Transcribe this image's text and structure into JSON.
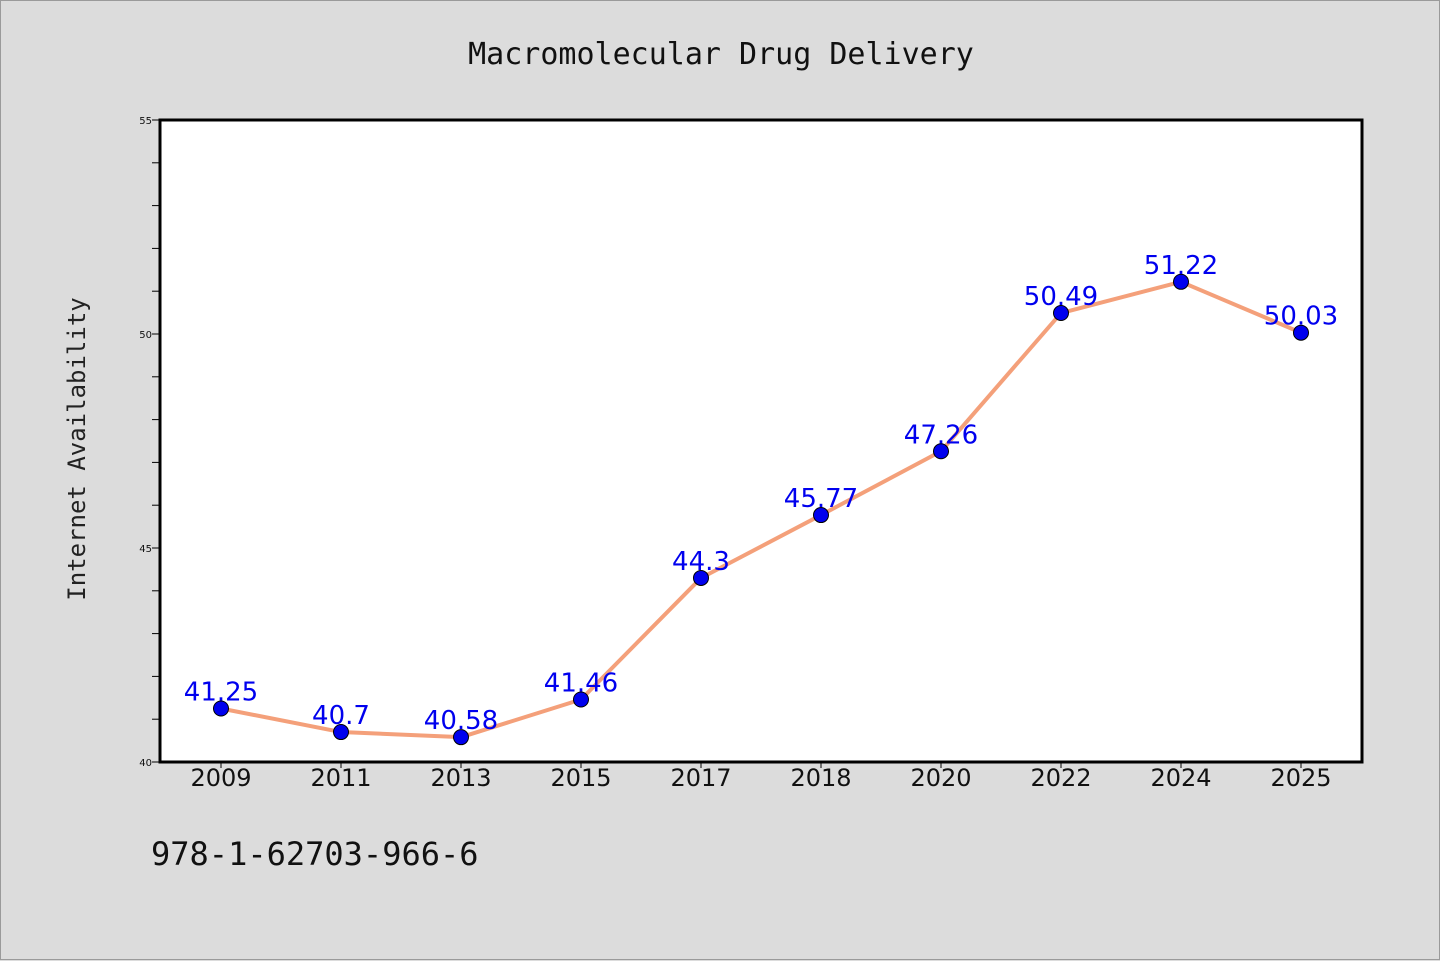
{
  "chart_data": {
    "type": "line",
    "title": "Macromolecular Drug Delivery",
    "xlabel": "",
    "ylabel": "Internet Availability",
    "categories": [
      "2009",
      "2011",
      "2013",
      "2015",
      "2017",
      "2018",
      "2020",
      "2022",
      "2024",
      "2025"
    ],
    "series": [
      {
        "values": [
          41.25,
          40.7,
          40.58,
          41.46,
          44.3,
          45.77,
          47.26,
          50.49,
          51.22,
          50.03
        ],
        "data_labels": [
          "41.25",
          "40.7",
          "40.58",
          "41.46",
          "44.3",
          "45.77",
          "47.26",
          "50.49",
          "51.22",
          "50.03"
        ],
        "line_color": "#f4a07a",
        "marker_color": "#0000ee"
      }
    ],
    "ylim": [
      40,
      55
    ],
    "yticks": [
      "40",
      "45",
      "50",
      "55"
    ],
    "grid": false,
    "legend": "none",
    "background": "#ffffff",
    "figure_background": "#dcdcdc"
  },
  "footer_text": "978-1-62703-966-6"
}
